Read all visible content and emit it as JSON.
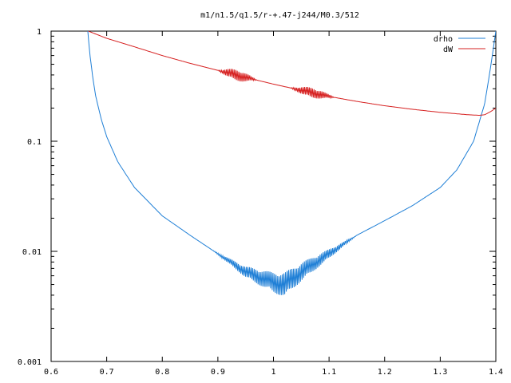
{
  "chart_data": {
    "type": "line",
    "title": "m1/n1.5/q1.5/r-+.47-j244/M0.3/512",
    "xlabel": "",
    "ylabel": "",
    "xlim": [
      0.6,
      1.4
    ],
    "ylim": [
      0.001,
      1
    ],
    "yscale": "log",
    "grid": false,
    "legend_position": "top-right",
    "x_ticks": [
      "0.6",
      "0.7",
      "0.8",
      "0.9",
      "1",
      "1.1",
      "1.2",
      "1.3",
      "1.4"
    ],
    "y_ticks": [
      "0.001",
      "0.01",
      "0.1",
      "1"
    ],
    "series": [
      {
        "name": "drho",
        "color": "#1f7fd6",
        "x": [
          0.666,
          0.67,
          0.675,
          0.68,
          0.69,
          0.7,
          0.72,
          0.75,
          0.8,
          0.85,
          0.9,
          0.95,
          1.0,
          1.02,
          1.05,
          1.1,
          1.15,
          1.2,
          1.25,
          1.3,
          1.33,
          1.36,
          1.38,
          1.39,
          1.4
        ],
        "y": [
          1.0,
          0.6,
          0.38,
          0.26,
          0.16,
          0.11,
          0.065,
          0.038,
          0.021,
          0.014,
          0.0095,
          0.0065,
          0.0052,
          0.005,
          0.0065,
          0.0095,
          0.014,
          0.019,
          0.026,
          0.038,
          0.055,
          0.1,
          0.22,
          0.45,
          1.0
        ]
      },
      {
        "name": "dW",
        "color": "#d62020",
        "x": [
          0.667,
          0.7,
          0.75,
          0.8,
          0.85,
          0.9,
          0.95,
          1.0,
          1.05,
          1.1,
          1.15,
          1.2,
          1.25,
          1.3,
          1.35,
          1.37,
          1.38,
          1.39,
          1.4
        ],
        "y": [
          1.0,
          0.86,
          0.72,
          0.6,
          0.51,
          0.44,
          0.38,
          0.33,
          0.29,
          0.255,
          0.23,
          0.21,
          0.195,
          0.183,
          0.174,
          0.172,
          0.174,
          0.185,
          0.2
        ]
      }
    ]
  }
}
